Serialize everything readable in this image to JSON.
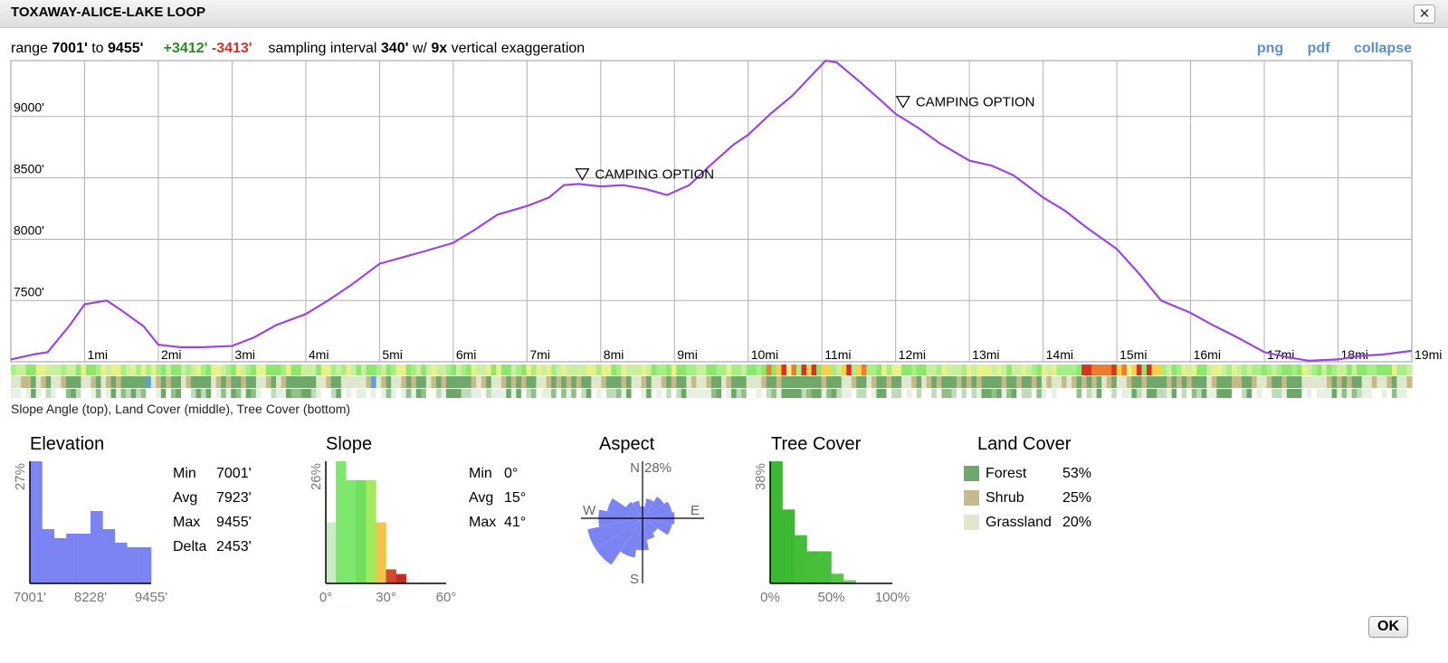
{
  "window": {
    "title": "TOXAWAY-ALICE-LAKE LOOP",
    "close_label": "✕",
    "ok_label": "OK"
  },
  "summary": {
    "range_prefix": "range",
    "min": "7001'",
    "to_word": "to",
    "max": "9455'",
    "gain": "+3412'",
    "loss": "-3413'",
    "interval_prefix": "sampling interval",
    "interval": "340'",
    "exag_prefix": "w/",
    "exag": "9x",
    "exag_suffix": "vertical exaggeration"
  },
  "links": [
    "png",
    "pdf",
    "collapse"
  ],
  "strip_caption": "Slope Angle (top), Land Cover (middle), Tree Cover (bottom)",
  "colors": {
    "profile_line": "#9b46e0",
    "grid": "#b0b0b0",
    "elevation_hist": "#7b84f2",
    "forest": "#6fa86a",
    "shrub": "#c8b98a",
    "grassland": "#dfe8cf",
    "link": "#5b8fd0",
    "gain": "#2a8a2a",
    "loss": "#d03030"
  },
  "chart_data": [
    {
      "type": "line",
      "name": "elevation-profile",
      "x_unit": "mi",
      "y_unit": "ft",
      "xlim": [
        0,
        19
      ],
      "ylim": [
        7001,
        9455
      ],
      "x_ticks": [
        "1mi",
        "2mi",
        "3mi",
        "4mi",
        "5mi",
        "6mi",
        "7mi",
        "8mi",
        "9mi",
        "10mi",
        "11mi",
        "12mi",
        "13mi",
        "14mi",
        "15mi",
        "16mi",
        "17mi",
        "18mi",
        "19mi"
      ],
      "y_ticks": [
        "9000'",
        "8500'",
        "8000'",
        "7500'"
      ],
      "y_tick_values": [
        9000,
        8500,
        8000,
        7500
      ],
      "x": [
        0,
        0.3,
        0.5,
        0.8,
        1,
        1.3,
        1.5,
        1.8,
        2,
        2.3,
        2.6,
        3,
        3.3,
        3.6,
        4,
        4.3,
        4.6,
        5,
        5.3,
        5.6,
        6,
        6.3,
        6.6,
        7,
        7.3,
        7.5,
        7.7,
        8,
        8.3,
        8.6,
        8.9,
        9.2,
        9.5,
        9.8,
        10,
        10.3,
        10.6,
        10.9,
        11.05,
        11.2,
        11.5,
        11.8,
        12,
        12.3,
        12.6,
        13,
        13.3,
        13.6,
        14,
        14.3,
        14.6,
        15,
        15.3,
        15.6,
        16,
        16.3,
        16.6,
        17,
        17.3,
        17.6,
        18,
        18.3,
        18.6,
        19
      ],
      "y": [
        7020,
        7060,
        7080,
        7300,
        7470,
        7500,
        7420,
        7290,
        7140,
        7120,
        7120,
        7130,
        7200,
        7300,
        7390,
        7500,
        7620,
        7800,
        7850,
        7900,
        7970,
        8080,
        8200,
        8270,
        8340,
        8440,
        8450,
        8430,
        8440,
        8410,
        8360,
        8440,
        8610,
        8770,
        8850,
        9020,
        9170,
        9360,
        9455,
        9440,
        9290,
        9130,
        9020,
        8910,
        8780,
        8640,
        8600,
        8520,
        8340,
        8230,
        8090,
        7920,
        7720,
        7500,
        7400,
        7300,
        7210,
        7080,
        7040,
        7010,
        7020,
        7050,
        7060,
        7090
      ],
      "annotations": [
        {
          "text": "CAMPING OPTION",
          "x": 7.75,
          "y": 8440
        },
        {
          "text": "CAMPING OPTION",
          "x": 12.1,
          "y": 9030
        }
      ]
    },
    {
      "type": "bar",
      "name": "elevation-histogram",
      "title": "Elevation",
      "max_label": "27%",
      "x_tick_labels": [
        "7001'",
        "8228'",
        "9455'"
      ],
      "values": [
        27,
        12,
        10,
        11,
        11,
        16,
        12,
        9,
        8,
        8
      ],
      "max": 27,
      "stats": [
        {
          "label": "Min",
          "value": "7001'"
        },
        {
          "label": "Avg",
          "value": "7923'"
        },
        {
          "label": "Max",
          "value": "9455'"
        },
        {
          "label": "Delta",
          "value": "2453'"
        }
      ]
    },
    {
      "type": "bar",
      "name": "slope-histogram",
      "title": "Slope",
      "max_label": "26%",
      "x_tick_labels": [
        "0°",
        "30°",
        "60°"
      ],
      "bins_degrees": [
        0,
        5,
        10,
        15,
        20,
        25,
        30,
        35,
        40,
        45,
        50,
        55
      ],
      "values": [
        13,
        26,
        22,
        22,
        22,
        13,
        3,
        2,
        0,
        0,
        0,
        0
      ],
      "max": 26,
      "bar_colors": [
        "#c9eec6",
        "#7de86b",
        "#7de86b",
        "#70df5f",
        "#a2e95e",
        "#efc54d",
        "#cf4a32",
        "#c82a24",
        "#c82a24",
        "#c82a24",
        "#c82a24",
        "#c82a24"
      ],
      "stats": [
        {
          "label": "Min",
          "value": "0°"
        },
        {
          "label": "Avg",
          "value": "15°"
        },
        {
          "label": "Max",
          "value": "41°"
        }
      ]
    },
    {
      "type": "rose",
      "name": "aspect-rose",
      "title": "Aspect",
      "labels": {
        "N": "N",
        "E": "E",
        "S": "S",
        "W": "W",
        "max": "28%"
      },
      "max": 28,
      "direction_values": [
        6,
        10,
        13,
        15,
        16,
        15,
        9,
        11,
        16,
        20,
        28,
        28,
        22,
        18,
        10,
        9
      ]
    },
    {
      "type": "bar",
      "name": "tree-cover-histogram",
      "title": "Tree Cover",
      "max_label": "38%",
      "x_tick_labels": [
        "0%",
        "50%",
        "100%"
      ],
      "values": [
        38,
        23,
        15,
        10,
        10,
        3,
        1,
        0,
        0,
        0
      ],
      "max": 38
    },
    {
      "type": "table",
      "name": "land-cover",
      "title": "Land Cover",
      "rows": [
        {
          "label": "Forest",
          "value": "53%",
          "color": "#6fa86a"
        },
        {
          "label": "Shrub",
          "value": "25%",
          "color": "#c8b98a"
        },
        {
          "label": "Grassland",
          "value": "20%",
          "color": "#dfe8cf"
        }
      ]
    }
  ]
}
